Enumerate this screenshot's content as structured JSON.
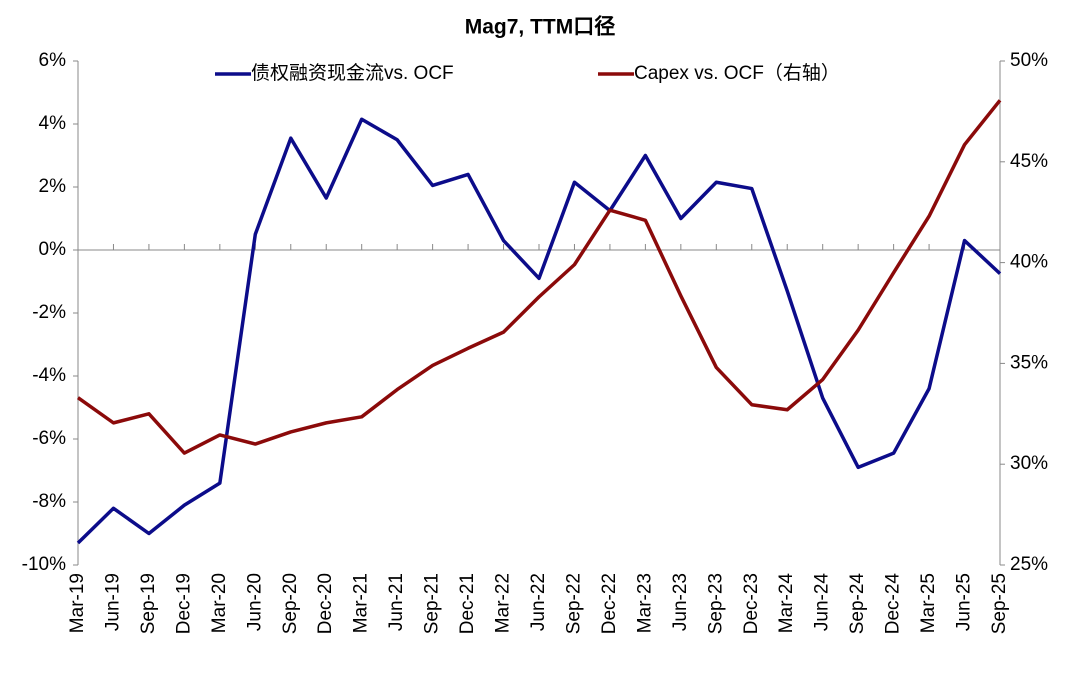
{
  "chart_data": {
    "type": "line",
    "title": "Mag7, TTM口径",
    "categories": [
      "Mar-19",
      "Jun-19",
      "Sep-19",
      "Dec-19",
      "Mar-20",
      "Jun-20",
      "Sep-20",
      "Dec-20",
      "Mar-21",
      "Jun-21",
      "Sep-21",
      "Dec-21",
      "Mar-22",
      "Jun-22",
      "Sep-22",
      "Dec-22",
      "Mar-23",
      "Jun-23",
      "Sep-23",
      "Dec-23",
      "Mar-24",
      "Jun-24",
      "Sep-24",
      "Dec-24",
      "Mar-25",
      "Jun-25",
      "Sep-25"
    ],
    "series": [
      {
        "name": "债权融资现金流vs. OCF",
        "color": "#0c0c8a",
        "values": [
          -9.3,
          -8.2,
          -9.0,
          -8.1,
          -7.4,
          0.5,
          3.55,
          1.65,
          4.15,
          3.5,
          2.05,
          2.4,
          0.3,
          -0.9,
          2.15,
          1.25,
          3.0,
          1.0,
          2.15,
          1.95,
          -1.3,
          -4.7,
          -6.9,
          -6.45,
          -4.4,
          0.3,
          -0.75
        ]
      },
      {
        "name": "Capex vs. OCF（右轴）",
        "color": "#8b0a0a",
        "axis": "y2",
        "values": [
          33.3,
          32.05,
          32.5,
          30.55,
          31.45,
          31.0,
          31.6,
          32.05,
          32.35,
          33.7,
          34.9,
          35.75,
          36.55,
          38.3,
          39.9,
          42.6,
          42.1,
          38.35,
          34.8,
          32.95,
          32.7,
          34.2,
          36.65,
          39.5,
          42.3,
          45.85,
          48.05
        ]
      }
    ],
    "ylim": [
      -10,
      6
    ],
    "yticks": [
      {
        "value": -10,
        "label": "-10%"
      },
      {
        "value": -8,
        "label": "-8%"
      },
      {
        "value": -6,
        "label": "-6%"
      },
      {
        "value": -4,
        "label": "-4%"
      },
      {
        "value": -2,
        "label": "-2%"
      },
      {
        "value": 0,
        "label": "0%"
      },
      {
        "value": 2,
        "label": "2%"
      },
      {
        "value": 4,
        "label": "4%"
      },
      {
        "value": 6,
        "label": "6%"
      }
    ],
    "y2lim": [
      25,
      50
    ],
    "y2ticks": [
      {
        "value": 25,
        "label": "25%"
      },
      {
        "value": 30,
        "label": "30%"
      },
      {
        "value": 35,
        "label": "35%"
      },
      {
        "value": 40,
        "label": "40%"
      },
      {
        "value": 45,
        "label": "45%"
      },
      {
        "value": 50,
        "label": "50%"
      }
    ]
  }
}
